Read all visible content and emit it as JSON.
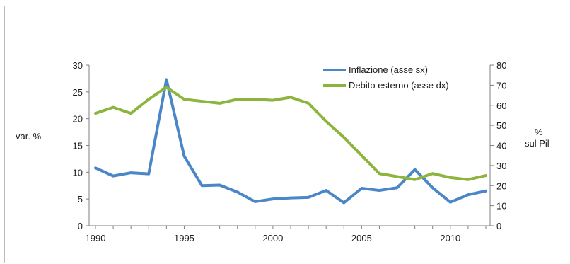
{
  "chart_data": {
    "type": "line",
    "x": [
      1990,
      1991,
      1992,
      1993,
      1994,
      1995,
      1996,
      1997,
      1998,
      1999,
      2000,
      2001,
      2002,
      2003,
      2004,
      2005,
      2006,
      2007,
      2008,
      2009,
      2010,
      2011,
      2012
    ],
    "x_ticks": [
      "1990",
      "1995",
      "2000",
      "2005",
      "2010"
    ],
    "y_left_ticks": [
      "0",
      "5",
      "10",
      "15",
      "20",
      "25",
      "30"
    ],
    "y_right_ticks": [
      "0",
      "10",
      "20",
      "30",
      "40",
      "50",
      "60",
      "70",
      "80"
    ],
    "ylim_left": [
      0,
      30
    ],
    "ylim_right": [
      0,
      80
    ],
    "ylabel_left": "var. %",
    "ylabel_right_line1": "%",
    "ylabel_right_line2": "sul  Pil",
    "legend_position": "top-right",
    "series": [
      {
        "name": "Inflazione (asse sx)",
        "axis": "left",
        "color": "#4a86c8",
        "values": [
          10.8,
          9.3,
          9.9,
          9.7,
          27.3,
          13.0,
          7.5,
          7.6,
          6.3,
          4.5,
          5.0,
          5.2,
          5.3,
          6.6,
          4.3,
          7.0,
          6.6,
          7.1,
          10.5,
          7.1,
          4.4,
          5.8,
          6.5
        ]
      },
      {
        "name": "Debito esterno (asse dx)",
        "axis": "right",
        "color": "#8db53d",
        "values": [
          56,
          59,
          56,
          63,
          69,
          63,
          62,
          61,
          63,
          63,
          62.5,
          64,
          61,
          52,
          44,
          35,
          26,
          24.5,
          23,
          26,
          24,
          23,
          25
        ]
      }
    ],
    "grid": false
  }
}
